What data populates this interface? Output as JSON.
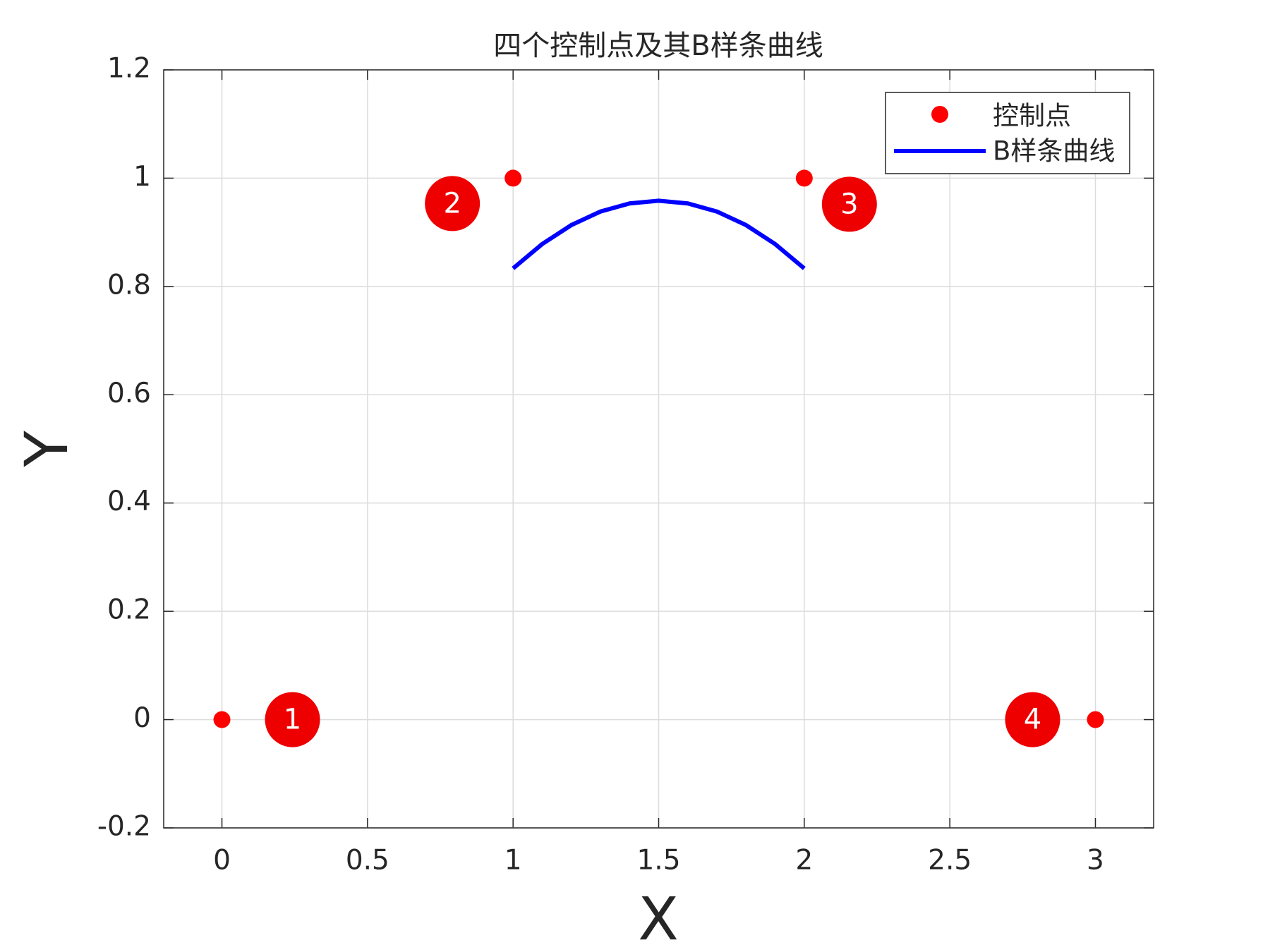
{
  "chart_data": {
    "type": "scatter",
    "title": "四个控制点及其B样条曲线",
    "x_label": "X",
    "y_label": "Y",
    "xlim": [
      -0.2,
      3.2
    ],
    "ylim": [
      -0.2,
      1.2
    ],
    "xticks": [
      0,
      0.5,
      1,
      1.5,
      2,
      2.5,
      3
    ],
    "yticks": [
      -0.2,
      0,
      0.2,
      0.4,
      0.6,
      0.8,
      1,
      1.2
    ],
    "grid": true,
    "legend": "northeast",
    "series": [
      {
        "name": "控制点",
        "type": "scatter",
        "color": "#ff0000",
        "x": [
          0,
          1,
          2,
          3
        ],
        "y": [
          0,
          1,
          1,
          0
        ]
      },
      {
        "name": "B样条曲线",
        "type": "line",
        "color": "#0000ff",
        "x": [
          1,
          1.1,
          1.2,
          1.3,
          1.4,
          1.5,
          1.6,
          1.7,
          1.8,
          1.9,
          2
        ],
        "y": [
          0.8333,
          0.8783,
          0.9133,
          0.9383,
          0.9533,
          0.9583,
          0.9533,
          0.9383,
          0.9133,
          0.8783,
          0.8333
        ]
      }
    ],
    "annotations": [
      "1",
      "2",
      "3",
      "4"
    ]
  }
}
